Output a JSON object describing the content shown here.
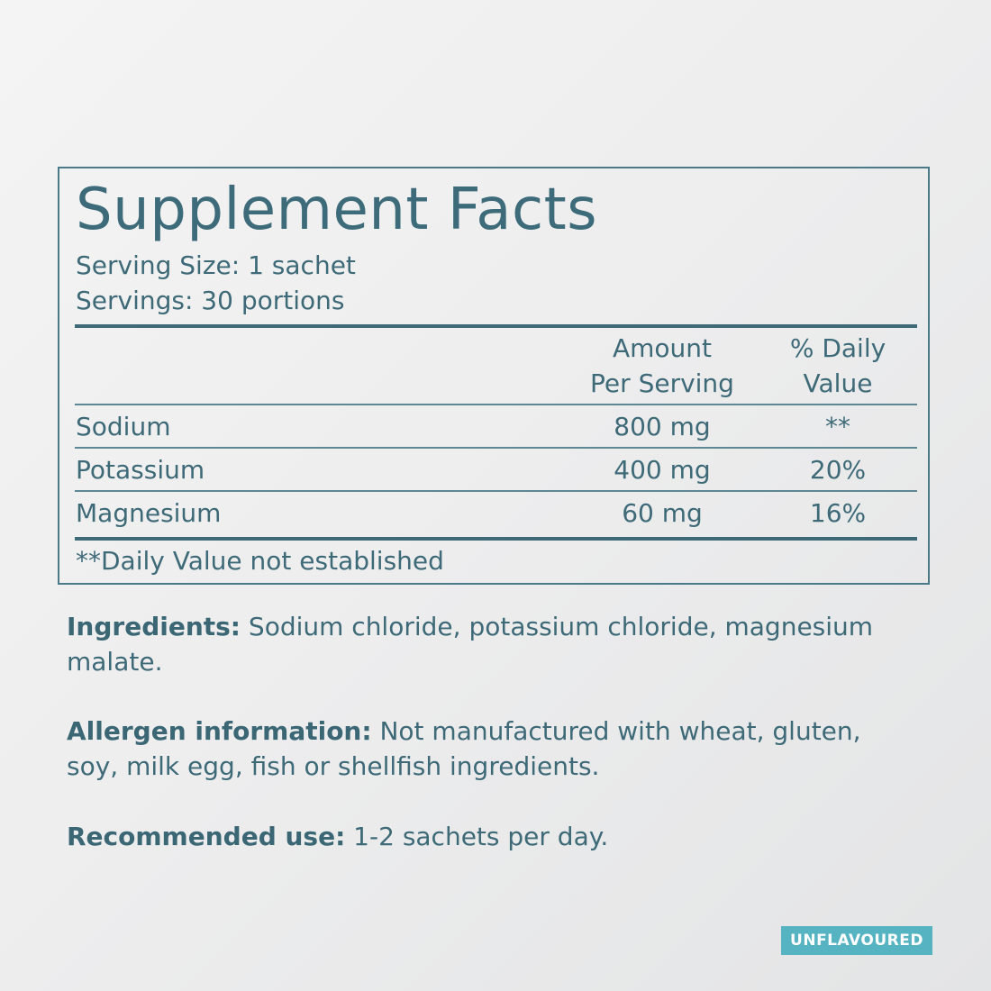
{
  "supplement_facts": {
    "title": "Supplement Facts",
    "serving_size": "Serving Size: 1 sachet",
    "servings": "Servings: 30 portions",
    "column_headers": {
      "amount_line1": "Amount",
      "amount_line2": "Per Serving",
      "daily_value_line1": "% Daily",
      "daily_value_line2": "Value"
    },
    "rows": [
      {
        "name": "Sodium",
        "amount": "800 mg",
        "daily_value": "**"
      },
      {
        "name": "Potassium",
        "amount": "400 mg",
        "daily_value": "20%"
      },
      {
        "name": "Magnesium",
        "amount": "60 mg",
        "daily_value": "16%"
      }
    ],
    "footnote": "**Daily Value not established"
  },
  "ingredients": {
    "label": "Ingredients:",
    "text": " Sodium chloride, potassium chloride, magnesium malate."
  },
  "allergen": {
    "label": "Allergen information:",
    "text": " Not manufactured with wheat, gluten, soy, milk egg, fish or shellfish ingredients."
  },
  "recommended": {
    "label": "Recommended use:",
    "text": " 1-2 sachets per day."
  },
  "badge": {
    "label": "UNFLAVOURED"
  },
  "colors": {
    "text": "#3e6a78",
    "badge_background": "#56b3c2"
  }
}
